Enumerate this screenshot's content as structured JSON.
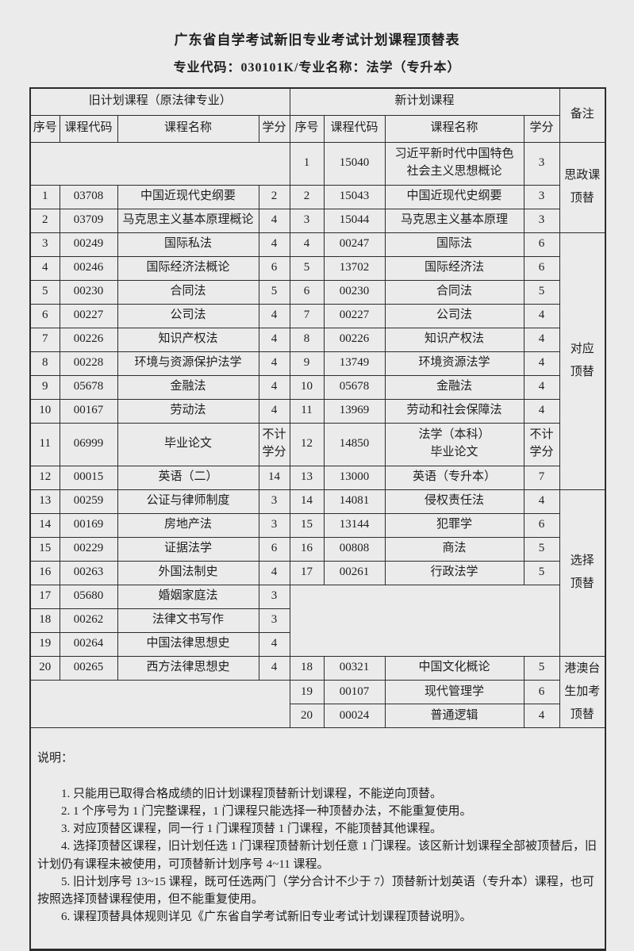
{
  "page": {
    "title": "广东省自学考试新旧专业考试计划课程顶替表",
    "subtitle": "专业代码：030101K/专业名称：法学（专升本）"
  },
  "table": {
    "group_headers": {
      "old": "旧计划课程（原法律专业）",
      "new": "新计划课程",
      "remark": "备注"
    },
    "column_headers": {
      "seq": "序号",
      "code": "课程代码",
      "name": "课程名称",
      "credit": "学分"
    },
    "rows": [
      {
        "old": {
          "merged": true,
          "colspan": 4,
          "rowspan": 1
        },
        "new": {
          "seq": "1",
          "code": "15040",
          "name": "习近平新时代中国特色\n社会主义思想概论",
          "credit": "3"
        },
        "remark": {
          "label": "思政课\n顶替",
          "rowspan": 3
        },
        "tall": true
      },
      {
        "old": {
          "seq": "1",
          "code": "03708",
          "name": "中国近现代史纲要",
          "credit": "2"
        },
        "new": {
          "seq": "2",
          "code": "15043",
          "name": "中国近现代史纲要",
          "credit": "3"
        }
      },
      {
        "old": {
          "seq": "2",
          "code": "03709",
          "name": "马克思主义基本原理概论",
          "credit": "4"
        },
        "new": {
          "seq": "3",
          "code": "15044",
          "name": "马克思主义基本原理",
          "credit": "3"
        }
      },
      {
        "old": {
          "seq": "3",
          "code": "00249",
          "name": "国际私法",
          "credit": "4"
        },
        "new": {
          "seq": "4",
          "code": "00247",
          "name": "国际法",
          "credit": "6"
        },
        "remark": {
          "label": "对应\n顶替",
          "rowspan": 10
        }
      },
      {
        "old": {
          "seq": "4",
          "code": "00246",
          "name": "国际经济法概论",
          "credit": "6"
        },
        "new": {
          "seq": "5",
          "code": "13702",
          "name": "国际经济法",
          "credit": "6"
        }
      },
      {
        "old": {
          "seq": "5",
          "code": "00230",
          "name": "合同法",
          "credit": "5"
        },
        "new": {
          "seq": "6",
          "code": "00230",
          "name": "合同法",
          "credit": "5"
        }
      },
      {
        "old": {
          "seq": "6",
          "code": "00227",
          "name": "公司法",
          "credit": "4"
        },
        "new": {
          "seq": "7",
          "code": "00227",
          "name": "公司法",
          "credit": "4"
        }
      },
      {
        "old": {
          "seq": "7",
          "code": "00226",
          "name": "知识产权法",
          "credit": "4"
        },
        "new": {
          "seq": "8",
          "code": "00226",
          "name": "知识产权法",
          "credit": "4"
        }
      },
      {
        "old": {
          "seq": "8",
          "code": "00228",
          "name": "环境与资源保护法学",
          "credit": "4"
        },
        "new": {
          "seq": "9",
          "code": "13749",
          "name": "环境资源法学",
          "credit": "4"
        }
      },
      {
        "old": {
          "seq": "9",
          "code": "05678",
          "name": "金融法",
          "credit": "4"
        },
        "new": {
          "seq": "10",
          "code": "05678",
          "name": "金融法",
          "credit": "4"
        }
      },
      {
        "old": {
          "seq": "10",
          "code": "00167",
          "name": "劳动法",
          "credit": "4"
        },
        "new": {
          "seq": "11",
          "code": "13969",
          "name": "劳动和社会保障法",
          "credit": "4"
        }
      },
      {
        "old": {
          "seq": "11",
          "code": "06999",
          "name": "毕业论文",
          "credit": "不计\n学分"
        },
        "new": {
          "seq": "12",
          "code": "14850",
          "name": "法学（本科）\n毕业论文",
          "credit": "不计\n学分"
        },
        "tall": true
      },
      {
        "old": {
          "seq": "12",
          "code": "00015",
          "name": "英语（二）",
          "credit": "14"
        },
        "new": {
          "seq": "13",
          "code": "13000",
          "name": "英语（专升本）",
          "credit": "7"
        }
      },
      {
        "old": {
          "seq": "13",
          "code": "00259",
          "name": "公证与律师制度",
          "credit": "3"
        },
        "new": {
          "seq": "14",
          "code": "14081",
          "name": "侵权责任法",
          "credit": "4"
        },
        "remark": {
          "label": "选择\n顶替",
          "rowspan": 7
        }
      },
      {
        "old": {
          "seq": "14",
          "code": "00169",
          "name": "房地产法",
          "credit": "3"
        },
        "new": {
          "seq": "15",
          "code": "13144",
          "name": "犯罪学",
          "credit": "6"
        }
      },
      {
        "old": {
          "seq": "15",
          "code": "00229",
          "name": "证据法学",
          "credit": "6"
        },
        "new": {
          "seq": "16",
          "code": "00808",
          "name": "商法",
          "credit": "5"
        }
      },
      {
        "old": {
          "seq": "16",
          "code": "00263",
          "name": "外国法制史",
          "credit": "4"
        },
        "new": {
          "seq": "17",
          "code": "00261",
          "name": "行政法学",
          "credit": "5"
        }
      },
      {
        "old": {
          "seq": "17",
          "code": "05680",
          "name": "婚姻家庭法",
          "credit": "3"
        },
        "new": {
          "merged": true,
          "colspan": 4,
          "rowspan": 3
        }
      },
      {
        "old": {
          "seq": "18",
          "code": "00262",
          "name": "法律文书写作",
          "credit": "3"
        },
        "new": "skip"
      },
      {
        "old": {
          "seq": "19",
          "code": "00264",
          "name": "中国法律思想史",
          "credit": "4"
        },
        "new": "skip"
      },
      {
        "old": {
          "seq": "20",
          "code": "00265",
          "name": "西方法律思想史",
          "credit": "4"
        },
        "new": {
          "seq": "18",
          "code": "00321",
          "name": "中国文化概论",
          "credit": "5"
        },
        "remark": {
          "label": "港澳台\n生加考\n顶替",
          "rowspan": 3
        }
      },
      {
        "old": {
          "merged": true,
          "colspan": 4,
          "rowspan": 2
        },
        "new": {
          "seq": "19",
          "code": "00107",
          "name": "现代管理学",
          "credit": "6"
        }
      },
      {
        "old": "skip",
        "new": {
          "seq": "20",
          "code": "00024",
          "name": "普通逻辑",
          "credit": "4"
        }
      }
    ]
  },
  "notes": {
    "heading": "说明：",
    "items": [
      "1. 只能用已取得合格成绩的旧计划课程顶替新计划课程，不能逆向顶替。",
      "2. 1 个序号为 1 门完整课程，1 门课程只能选择一种顶替办法，不能重复使用。",
      "3. 对应顶替区课程，同一行 1 门课程顶替 1 门课程，不能顶替其他课程。",
      "4. 选择顶替区课程，旧计划任选 1 门课程顶替新计划任意 1 门课程。该区新计划课程全部被顶替后，旧计划仍有课程未被使用，可顶替新计划序号 4~11 课程。",
      "5. 旧计划序号 13~15 课程，既可任选两门（学分合计不少于 7）顶替新计划英语（专升本）课程，也可按照选择顶替课程使用，但不能重复使用。",
      "6. 课程顶替具体规则详见《广东省自学考试新旧专业考试计划课程顶替说明》。"
    ]
  }
}
